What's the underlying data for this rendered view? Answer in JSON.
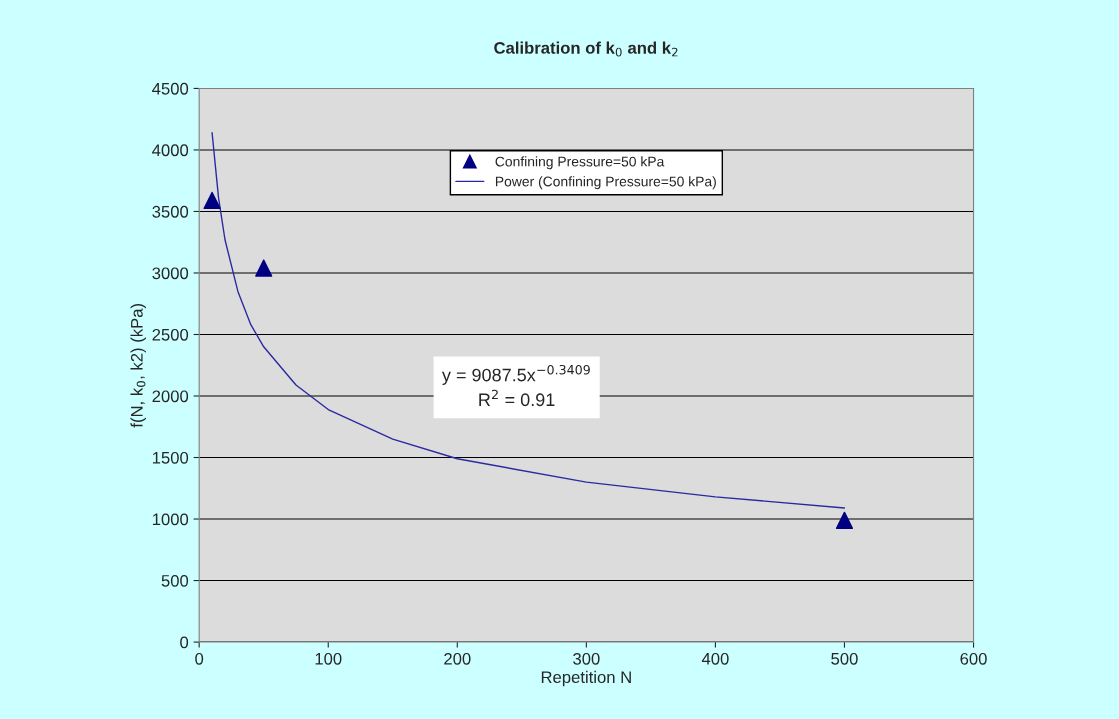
{
  "chart_data": {
    "type": "scatter",
    "title": "Calibration of k$_{0}$ and k$_{2}$",
    "xlabel": "Repetition N",
    "ylabel": "f(N, k$_{0}$, k2) (kPa)",
    "series": [
      {
        "name": "Confining Pressure=50 kPa",
        "marker": "triangle",
        "color": "#000080",
        "x": [
          10,
          50,
          500
        ],
        "values": [
          3590,
          3040,
          990
        ]
      },
      {
        "name": "Power (Confining Pressure=50 kPa)",
        "type": "line",
        "color": "#2a2aa0",
        "x": [
          10,
          15,
          20,
          30,
          40,
          50,
          75,
          100,
          150,
          200,
          300,
          400,
          500
        ],
        "values": [
          4140,
          3610,
          3270,
          2850,
          2580,
          2400,
          2090,
          1890,
          1650,
          1490,
          1300,
          1180,
          1090
        ]
      }
    ],
    "annotations": [
      "y = 9087.5x$^{−0.3409}$\nR$^{2}$ = 0.91"
    ],
    "xlim": [
      0,
      600
    ],
    "xticks": [
      0,
      100,
      200,
      300,
      400,
      500,
      600
    ],
    "ylim": [
      0,
      4500
    ],
    "yticks": [
      0,
      500,
      1000,
      1500,
      2000,
      2500,
      3000,
      3500,
      4000,
      4500
    ],
    "grid": "y",
    "legend": "top"
  }
}
